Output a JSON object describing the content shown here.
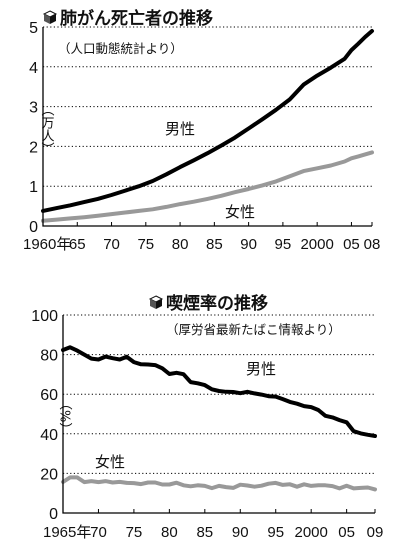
{
  "chart_data": [
    {
      "type": "line",
      "title": "肺がん死亡者の推移",
      "subtitle": "（人口動態統計より）",
      "ylabel": "（万人）",
      "ylim": [
        0,
        5
      ],
      "yticks": [
        "0",
        "1",
        "2",
        "3",
        "4",
        "5"
      ],
      "xlim": [
        1960,
        2008
      ],
      "xticks": [
        {
          "value": 1960,
          "label": "1960年"
        },
        {
          "value": 1965,
          "label": "65"
        },
        {
          "value": 1970,
          "label": "70"
        },
        {
          "value": 1975,
          "label": "75"
        },
        {
          "value": 1980,
          "label": "80"
        },
        {
          "value": 1985,
          "label": "85"
        },
        {
          "value": 1990,
          "label": "90"
        },
        {
          "value": 1995,
          "label": "95"
        },
        {
          "value": 2000,
          "label": "2000"
        },
        {
          "value": 2005,
          "label": "05"
        },
        {
          "value": 2008,
          "label": "08"
        }
      ],
      "grid": true,
      "series": [
        {
          "name": "男性",
          "color": "#000000",
          "x": [
            1960,
            1962,
            1964,
            1966,
            1968,
            1970,
            1972,
            1974,
            1976,
            1978,
            1980,
            1982,
            1984,
            1986,
            1988,
            1990,
            1992,
            1994,
            1996,
            1998,
            2000,
            2002,
            2004,
            2005,
            2006,
            2007,
            2008
          ],
          "y": [
            0.38,
            0.45,
            0.52,
            0.6,
            0.68,
            0.78,
            0.89,
            1.0,
            1.13,
            1.3,
            1.48,
            1.65,
            1.83,
            2.02,
            2.22,
            2.45,
            2.68,
            2.92,
            3.18,
            3.55,
            3.78,
            3.98,
            4.2,
            4.42,
            4.58,
            4.75,
            4.9
          ]
        },
        {
          "name": "女性",
          "color": "#999999",
          "x": [
            1960,
            1962,
            1964,
            1966,
            1968,
            1970,
            1972,
            1974,
            1976,
            1978,
            1980,
            1982,
            1984,
            1986,
            1988,
            1990,
            1992,
            1994,
            1996,
            1998,
            2000,
            2002,
            2004,
            2005,
            2006,
            2007,
            2008
          ],
          "y": [
            0.13,
            0.16,
            0.19,
            0.22,
            0.26,
            0.3,
            0.34,
            0.38,
            0.42,
            0.48,
            0.55,
            0.61,
            0.68,
            0.76,
            0.85,
            0.93,
            1.02,
            1.12,
            1.25,
            1.38,
            1.45,
            1.52,
            1.62,
            1.7,
            1.75,
            1.8,
            1.85
          ]
        }
      ]
    },
    {
      "type": "line",
      "title": "喫煙率の推移",
      "subtitle": "（厚労省最新たばこ情報より）",
      "ylabel": "（%）",
      "ylim": [
        0,
        100
      ],
      "yticks": [
        "0",
        "20",
        "40",
        "60",
        "80",
        "100"
      ],
      "xlim": [
        1965,
        2009
      ],
      "xticks": [
        {
          "value": 1965,
          "label": "1965年"
        },
        {
          "value": 1970,
          "label": "70"
        },
        {
          "value": 1975,
          "label": "75"
        },
        {
          "value": 1980,
          "label": "80"
        },
        {
          "value": 1985,
          "label": "85"
        },
        {
          "value": 1990,
          "label": "90"
        },
        {
          "value": 1995,
          "label": "95"
        },
        {
          "value": 2000,
          "label": "2000"
        },
        {
          "value": 2005,
          "label": "05"
        },
        {
          "value": 2009,
          "label": "09"
        }
      ],
      "grid": true,
      "series": [
        {
          "name": "男性",
          "color": "#000000",
          "x": [
            1965,
            1966,
            1967,
            1968,
            1969,
            1970,
            1971,
            1972,
            1973,
            1974,
            1975,
            1976,
            1977,
            1978,
            1979,
            1980,
            1981,
            1982,
            1983,
            1984,
            1985,
            1986,
            1987,
            1988,
            1989,
            1990,
            1991,
            1992,
            1993,
            1994,
            1995,
            1996,
            1997,
            1998,
            1999,
            2000,
            2001,
            2002,
            2003,
            2004,
            2005,
            2006,
            2007,
            2008,
            2009
          ],
          "y": [
            82.3,
            83.7,
            82.0,
            80.0,
            78.0,
            77.5,
            79.0,
            78.2,
            77.5,
            78.9,
            76.2,
            75.1,
            75.0,
            74.7,
            73.1,
            70.2,
            70.8,
            70.1,
            66.1,
            65.5,
            64.6,
            62.5,
            61.6,
            61.2,
            61.1,
            60.5,
            61.2,
            60.4,
            59.8,
            59.0,
            58.8,
            57.5,
            56.1,
            55.2,
            54.0,
            53.5,
            52.0,
            49.1,
            48.3,
            46.9,
            45.8,
            41.3,
            40.2,
            39.5,
            38.9
          ]
        },
        {
          "name": "女性",
          "color": "#999999",
          "x": [
            1965,
            1966,
            1967,
            1968,
            1969,
            1970,
            1971,
            1972,
            1973,
            1974,
            1975,
            1976,
            1977,
            1978,
            1979,
            1980,
            1981,
            1982,
            1983,
            1984,
            1985,
            1986,
            1987,
            1988,
            1989,
            1990,
            1991,
            1992,
            1993,
            1994,
            1995,
            1996,
            1997,
            1998,
            1999,
            2000,
            2001,
            2002,
            2003,
            2004,
            2005,
            2006,
            2007,
            2008,
            2009
          ],
          "y": [
            15.7,
            18.0,
            18.0,
            15.6,
            16.1,
            15.6,
            16.1,
            15.4,
            15.7,
            15.2,
            15.1,
            14.6,
            15.4,
            15.4,
            14.4,
            14.4,
            15.3,
            14.0,
            13.5,
            14.0,
            13.7,
            12.6,
            13.7,
            13.1,
            12.7,
            14.3,
            13.9,
            13.3,
            13.8,
            14.8,
            15.2,
            14.2,
            14.5,
            13.3,
            14.5,
            13.7,
            14.0,
            14.0,
            13.6,
            12.4,
            13.8,
            12.4,
            12.7,
            12.9,
            11.9
          ]
        }
      ]
    }
  ]
}
